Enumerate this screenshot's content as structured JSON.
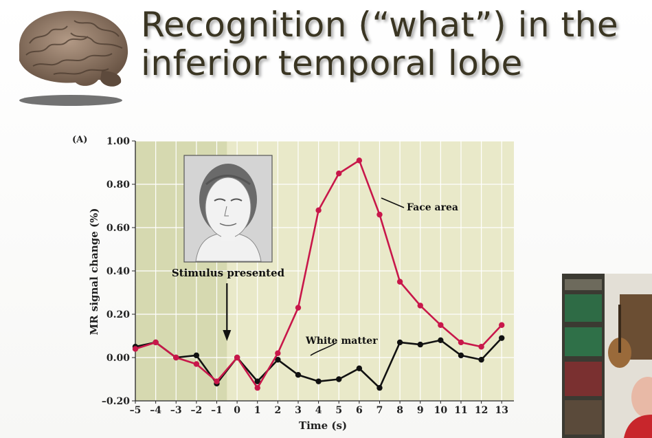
{
  "slide": {
    "title_line1": "Recognition (“what”) in the",
    "title_line2": "inferior temporal lobe"
  },
  "chart_data": {
    "type": "line",
    "panel_label": "(A)",
    "xlabel": "Time (s)",
    "ylabel": "MR signal change (%)",
    "x": [
      -5,
      -4,
      -3,
      -2,
      -1,
      0,
      1,
      2,
      3,
      4,
      5,
      6,
      7,
      8,
      9,
      10,
      11,
      12,
      13
    ],
    "xlim": [
      -5,
      13.6
    ],
    "ylim": [
      -0.2,
      1.0
    ],
    "y_ticks": [
      "1.00",
      "0.80",
      "0.60",
      "0.40",
      "0.20",
      "0.00",
      "–0.20"
    ],
    "x_ticks": [
      "–5",
      "–4",
      "–3",
      "–2",
      "–1",
      "0",
      "1",
      "2",
      "3",
      "4",
      "5",
      "6",
      "7",
      "8",
      "9",
      "10",
      "11",
      "12",
      "13"
    ],
    "grid": true,
    "series": [
      {
        "name": "Face area",
        "color": "#c8174a",
        "values": [
          0.04,
          0.07,
          0.0,
          -0.03,
          -0.11,
          0.0,
          -0.14,
          0.02,
          0.23,
          0.68,
          0.85,
          0.91,
          0.66,
          0.35,
          0.24,
          0.15,
          0.07,
          0.05,
          0.15
        ]
      },
      {
        "name": "White matter",
        "color": "#111111",
        "values": [
          0.05,
          0.07,
          0.0,
          0.01,
          -0.12,
          0.0,
          -0.11,
          -0.01,
          -0.08,
          -0.11,
          -0.1,
          -0.05,
          -0.14,
          0.07,
          0.06,
          0.08,
          0.01,
          -0.01,
          0.09
        ]
      }
    ],
    "annotation": "Stimulus presented",
    "stimulus_x": -0.5
  }
}
